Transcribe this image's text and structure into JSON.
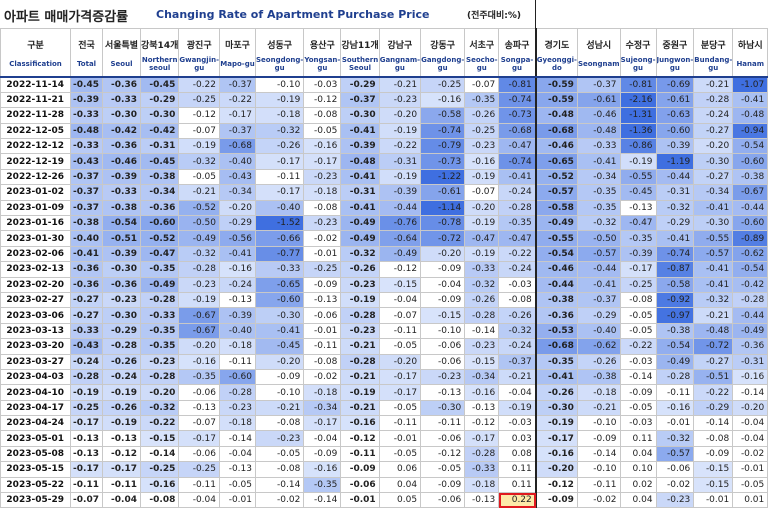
{
  "title_kr": "아파트 매매가격증감률",
  "title_en": "Changing Rate of Apartment Purchase Price",
  "unit": "(전주대비:%)",
  "columns": [
    {
      "kr": "구분",
      "en": "Classification"
    },
    {
      "kr": "전국",
      "en": "Total"
    },
    {
      "kr": "서울특별",
      "en": "Seoul"
    },
    {
      "kr": "강북14개",
      "en": "Northern seoul"
    },
    {
      "kr": "광진구",
      "en": "Gwangjin-gu"
    },
    {
      "kr": "마포구",
      "en": "Mapo-gu"
    },
    {
      "kr": "성동구",
      "en": "Seongdong-gu"
    },
    {
      "kr": "용산구",
      "en": "Yongsan-gu"
    },
    {
      "kr": "강남11개",
      "en": "Southern Seoul"
    },
    {
      "kr": "강남구",
      "en": "Gangnam-gu"
    },
    {
      "kr": "강동구",
      "en": "Gangdong-gu"
    },
    {
      "kr": "서초구",
      "en": "Seocho-gu"
    },
    {
      "kr": "송파구",
      "en": "Songpa-gu"
    },
    {
      "kr": "경기도",
      "en": "Gyeonggi-do"
    },
    {
      "kr": "성남시",
      "en": "Seongnam"
    },
    {
      "kr": "수정구",
      "en": "Sujeong-gu"
    },
    {
      "kr": "중원구",
      "en": "Jungwon-gu"
    },
    {
      "kr": "분당구",
      "en": "Bundang-gu"
    },
    {
      "kr": "하남시",
      "en": "Hanam"
    }
  ],
  "chart_data": {
    "type": "table",
    "title": "Changing Rate of Apartment Purchase Price",
    "rows": [
      [
        "2022-11-14",
        "-0.45",
        "-0.36",
        "-0.45",
        "-0.22",
        "-0.37",
        "-0.10",
        "-0.03",
        "-0.29",
        "-0.21",
        "-0.25",
        "-0.07",
        "-0.81",
        "-0.59",
        "-0.37",
        "-0.81",
        "-0.69",
        "-0.21",
        "-1.07"
      ],
      [
        "2022-11-21",
        "-0.39",
        "-0.33",
        "-0.29",
        "-0.25",
        "-0.22",
        "-0.19",
        "-0.12",
        "-0.37",
        "-0.23",
        "-0.16",
        "-0.35",
        "-0.74",
        "-0.59",
        "-0.61",
        "-2.16",
        "-0.61",
        "-0.28",
        "-0.41"
      ],
      [
        "2022-11-28",
        "-0.33",
        "-0.30",
        "-0.30",
        "-0.12",
        "-0.17",
        "-0.18",
        "-0.08",
        "-0.30",
        "-0.20",
        "-0.58",
        "-0.26",
        "-0.73",
        "-0.48",
        "-0.46",
        "-1.31",
        "-0.63",
        "-0.24",
        "-0.48"
      ],
      [
        "2022-12-05",
        "-0.48",
        "-0.42",
        "-0.42",
        "-0.07",
        "-0.37",
        "-0.32",
        "-0.05",
        "-0.41",
        "-0.19",
        "-0.74",
        "-0.25",
        "-0.68",
        "-0.68",
        "-0.48",
        "-1.36",
        "-0.60",
        "-0.27",
        "-0.94"
      ],
      [
        "2022-12-12",
        "-0.33",
        "-0.36",
        "-0.31",
        "-0.19",
        "-0.68",
        "-0.26",
        "-0.16",
        "-0.39",
        "-0.22",
        "-0.79",
        "-0.23",
        "-0.47",
        "-0.46",
        "-0.33",
        "-0.86",
        "-0.39",
        "-0.20",
        "-0.54"
      ],
      [
        "2022-12-19",
        "-0.43",
        "-0.46",
        "-0.45",
        "-0.32",
        "-0.40",
        "-0.17",
        "-0.17",
        "-0.48",
        "-0.31",
        "-0.73",
        "-0.16",
        "-0.74",
        "-0.65",
        "-0.41",
        "-0.19",
        "-1.19",
        "-0.30",
        "-0.60"
      ],
      [
        "2022-12-26",
        "-0.37",
        "-0.39",
        "-0.38",
        "-0.05",
        "-0.43",
        "-0.11",
        "-0.23",
        "-0.41",
        "-0.19",
        "-1.22",
        "-0.19",
        "-0.41",
        "-0.52",
        "-0.34",
        "-0.55",
        "-0.44",
        "-0.27",
        "-0.38"
      ],
      [
        "2023-01-02",
        "-0.37",
        "-0.33",
        "-0.34",
        "-0.21",
        "-0.34",
        "-0.17",
        "-0.18",
        "-0.31",
        "-0.39",
        "-0.61",
        "-0.07",
        "-0.24",
        "-0.57",
        "-0.35",
        "-0.45",
        "-0.31",
        "-0.34",
        "-0.67"
      ],
      [
        "2023-01-09",
        "-0.37",
        "-0.38",
        "-0.36",
        "-0.52",
        "-0.20",
        "-0.40",
        "-0.08",
        "-0.41",
        "-0.44",
        "-1.14",
        "-0.20",
        "-0.28",
        "-0.58",
        "-0.35",
        "-0.13",
        "-0.32",
        "-0.41",
        "-0.44"
      ],
      [
        "2023-01-16",
        "-0.38",
        "-0.54",
        "-0.60",
        "-0.50",
        "-0.29",
        "-1.52",
        "-0.23",
        "-0.49",
        "-0.76",
        "-0.78",
        "-0.19",
        "-0.35",
        "-0.49",
        "-0.32",
        "-0.47",
        "-0.29",
        "-0.30",
        "-0.60"
      ],
      [
        "2023-01-30",
        "-0.40",
        "-0.51",
        "-0.52",
        "-0.49",
        "-0.56",
        "-0.66",
        "-0.02",
        "-0.49",
        "-0.64",
        "-0.72",
        "-0.47",
        "-0.47",
        "-0.55",
        "-0.50",
        "-0.35",
        "-0.41",
        "-0.55",
        "-0.89"
      ],
      [
        "2023-02-06",
        "-0.41",
        "-0.39",
        "-0.47",
        "-0.32",
        "-0.41",
        "-0.77",
        "-0.01",
        "-0.32",
        "-0.49",
        "-0.20",
        "-0.19",
        "-0.22",
        "-0.54",
        "-0.57",
        "-0.39",
        "-0.74",
        "-0.57",
        "-0.62"
      ],
      [
        "2023-02-13",
        "-0.36",
        "-0.30",
        "-0.35",
        "-0.28",
        "-0.16",
        "-0.33",
        "-0.25",
        "-0.26",
        "-0.12",
        "-0.09",
        "-0.33",
        "-0.24",
        "-0.46",
        "-0.44",
        "-0.17",
        "-0.87",
        "-0.41",
        "-0.54"
      ],
      [
        "2023-02-20",
        "-0.36",
        "-0.36",
        "-0.49",
        "-0.23",
        "-0.24",
        "-0.65",
        "-0.09",
        "-0.23",
        "-0.15",
        "-0.04",
        "-0.32",
        "-0.03",
        "-0.44",
        "-0.41",
        "-0.25",
        "-0.58",
        "-0.41",
        "-0.42"
      ],
      [
        "2023-02-27",
        "-0.27",
        "-0.23",
        "-0.28",
        "-0.19",
        "-0.13",
        "-0.60",
        "-0.13",
        "-0.19",
        "-0.04",
        "-0.09",
        "-0.26",
        "-0.08",
        "-0.38",
        "-0.37",
        "-0.08",
        "-0.92",
        "-0.32",
        "-0.28"
      ],
      [
        "2023-03-06",
        "-0.27",
        "-0.30",
        "-0.33",
        "-0.67",
        "-0.39",
        "-0.30",
        "-0.06",
        "-0.28",
        "-0.07",
        "-0.15",
        "-0.28",
        "-0.26",
        "-0.36",
        "-0.29",
        "-0.05",
        "-0.97",
        "-0.21",
        "-0.44"
      ],
      [
        "2023-03-13",
        "-0.33",
        "-0.29",
        "-0.35",
        "-0.67",
        "-0.40",
        "-0.41",
        "-0.01",
        "-0.23",
        "-0.11",
        "-0.10",
        "-0.14",
        "-0.32",
        "-0.53",
        "-0.40",
        "-0.05",
        "-0.38",
        "-0.48",
        "-0.49"
      ],
      [
        "2023-03-20",
        "-0.43",
        "-0.28",
        "-0.35",
        "-0.20",
        "-0.18",
        "-0.45",
        "-0.11",
        "-0.21",
        "-0.05",
        "-0.06",
        "-0.23",
        "-0.24",
        "-0.68",
        "-0.62",
        "-0.22",
        "-0.54",
        "-0.72",
        "-0.36"
      ],
      [
        "2023-03-27",
        "-0.24",
        "-0.26",
        "-0.23",
        "-0.16",
        "-0.11",
        "-0.20",
        "-0.08",
        "-0.28",
        "-0.20",
        "-0.06",
        "-0.15",
        "-0.37",
        "-0.35",
        "-0.26",
        "-0.03",
        "-0.49",
        "-0.27",
        "-0.31"
      ],
      [
        "2023-04-03",
        "-0.28",
        "-0.24",
        "-0.28",
        "-0.35",
        "-0.60",
        "-0.09",
        "-0.02",
        "-0.21",
        "-0.17",
        "-0.23",
        "-0.34",
        "-0.21",
        "-0.41",
        "-0.38",
        "-0.14",
        "-0.28",
        "-0.51",
        "-0.16"
      ],
      [
        "2023-04-10",
        "-0.19",
        "-0.19",
        "-0.20",
        "-0.06",
        "-0.28",
        "-0.10",
        "-0.18",
        "-0.19",
        "-0.17",
        "-0.13",
        "-0.16",
        "-0.04",
        "-0.26",
        "-0.18",
        "-0.09",
        "-0.11",
        "-0.22",
        "-0.14"
      ],
      [
        "2023-04-17",
        "-0.25",
        "-0.26",
        "-0.32",
        "-0.13",
        "-0.23",
        "-0.21",
        "-0.34",
        "-0.21",
        "-0.05",
        "-0.30",
        "-0.13",
        "-0.19",
        "-0.30",
        "-0.21",
        "-0.05",
        "-0.16",
        "-0.29",
        "-0.20"
      ],
      [
        "2023-04-24",
        "-0.17",
        "-0.19",
        "-0.22",
        "-0.07",
        "-0.18",
        "-0.08",
        "-0.17",
        "-0.16",
        "-0.11",
        "-0.11",
        "-0.12",
        "-0.03",
        "-0.19",
        "-0.10",
        "-0.03",
        "-0.01",
        "-0.14",
        "-0.04"
      ],
      [
        "2023-05-01",
        "-0.13",
        "-0.13",
        "-0.15",
        "-0.17",
        "-0.14",
        "-0.23",
        "-0.04",
        "-0.12",
        "-0.01",
        "-0.06",
        "-0.17",
        "0.03",
        "-0.17",
        "-0.09",
        "0.11",
        "-0.32",
        "-0.08",
        "-0.04"
      ],
      [
        "2023-05-08",
        "-0.13",
        "-0.12",
        "-0.14",
        "-0.06",
        "-0.04",
        "-0.05",
        "-0.09",
        "-0.11",
        "-0.05",
        "-0.12",
        "-0.28",
        "0.08",
        "-0.16",
        "-0.14",
        "0.04",
        "-0.57",
        "-0.09",
        "-0.02"
      ],
      [
        "2023-05-15",
        "-0.17",
        "-0.17",
        "-0.25",
        "-0.25",
        "-0.13",
        "-0.08",
        "-0.16",
        "-0.09",
        "0.06",
        "-0.05",
        "-0.33",
        "0.11",
        "-0.20",
        "-0.10",
        "0.10",
        "-0.06",
        "-0.15",
        "-0.01"
      ],
      [
        "2023-05-22",
        "-0.11",
        "-0.11",
        "-0.16",
        "-0.11",
        "-0.05",
        "-0.14",
        "-0.35",
        "-0.06",
        "0.04",
        "-0.09",
        "-0.18",
        "0.11",
        "-0.12",
        "-0.11",
        "0.02",
        "-0.02",
        "-0.15",
        "-0.05"
      ],
      [
        "2023-05-29",
        "-0.07",
        "-0.04",
        "-0.08",
        "-0.04",
        "-0.01",
        "-0.02",
        "-0.14",
        "-0.01",
        "0.05",
        "-0.06",
        "-0.13",
        "0.22",
        "-0.09",
        "-0.02",
        "0.04",
        "-0.23",
        "-0.01",
        "0.01"
      ]
    ],
    "highlighted_cell": {
      "row": "2023-05-29",
      "column": "송파구"
    },
    "colors": {
      "header_text": "#1f3f8f",
      "highlight_border": "#e0191f",
      "cell_dark": "#3f6fe0",
      "cell_light": "#d8e3fb"
    }
  }
}
